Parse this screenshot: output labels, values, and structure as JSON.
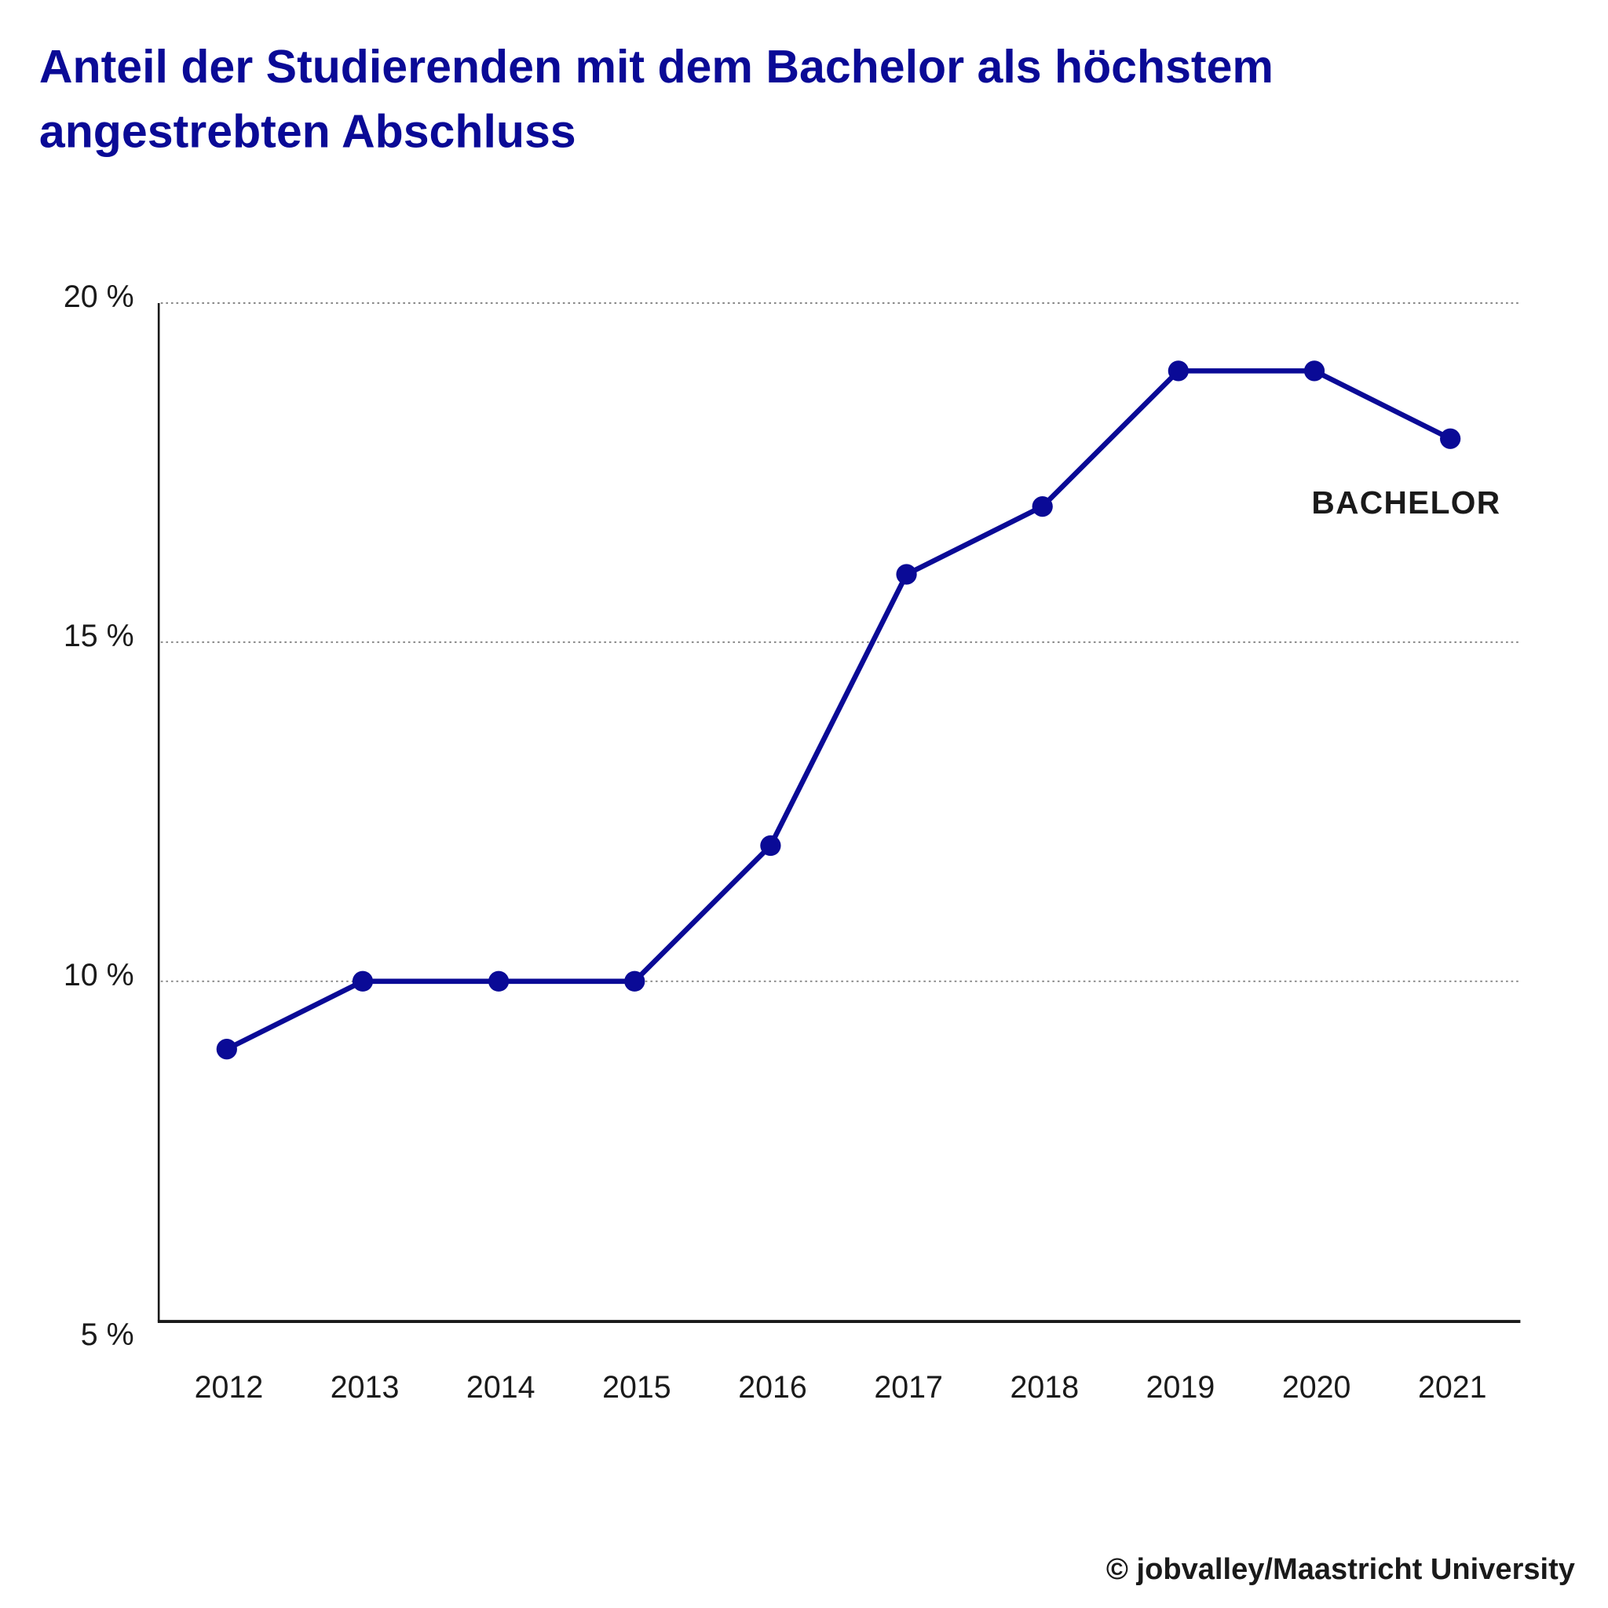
{
  "chart_data": {
    "type": "line",
    "title_lines": [
      "Anteil der Studierenden mit dem Bachelor als höchstem",
      "angestrebten Abschluss"
    ],
    "categories": [
      "2012",
      "2013",
      "2014",
      "2015",
      "2016",
      "2017",
      "2018",
      "2019",
      "2020",
      "2021"
    ],
    "series": [
      {
        "name": "BACHELOR",
        "values": [
          9,
          10,
          10,
          10,
          12,
          16,
          17,
          19,
          19,
          18
        ],
        "color": "#0a0a96"
      }
    ],
    "ylim": [
      5,
      20
    ],
    "yticks": [
      5,
      10,
      15,
      20
    ],
    "ytick_labels": [
      "5 %",
      "10 %",
      "15 %",
      "20 %"
    ],
    "grid": true,
    "xlabel": "",
    "ylabel": "",
    "credit": "© jobvalley/Maastricht University"
  }
}
